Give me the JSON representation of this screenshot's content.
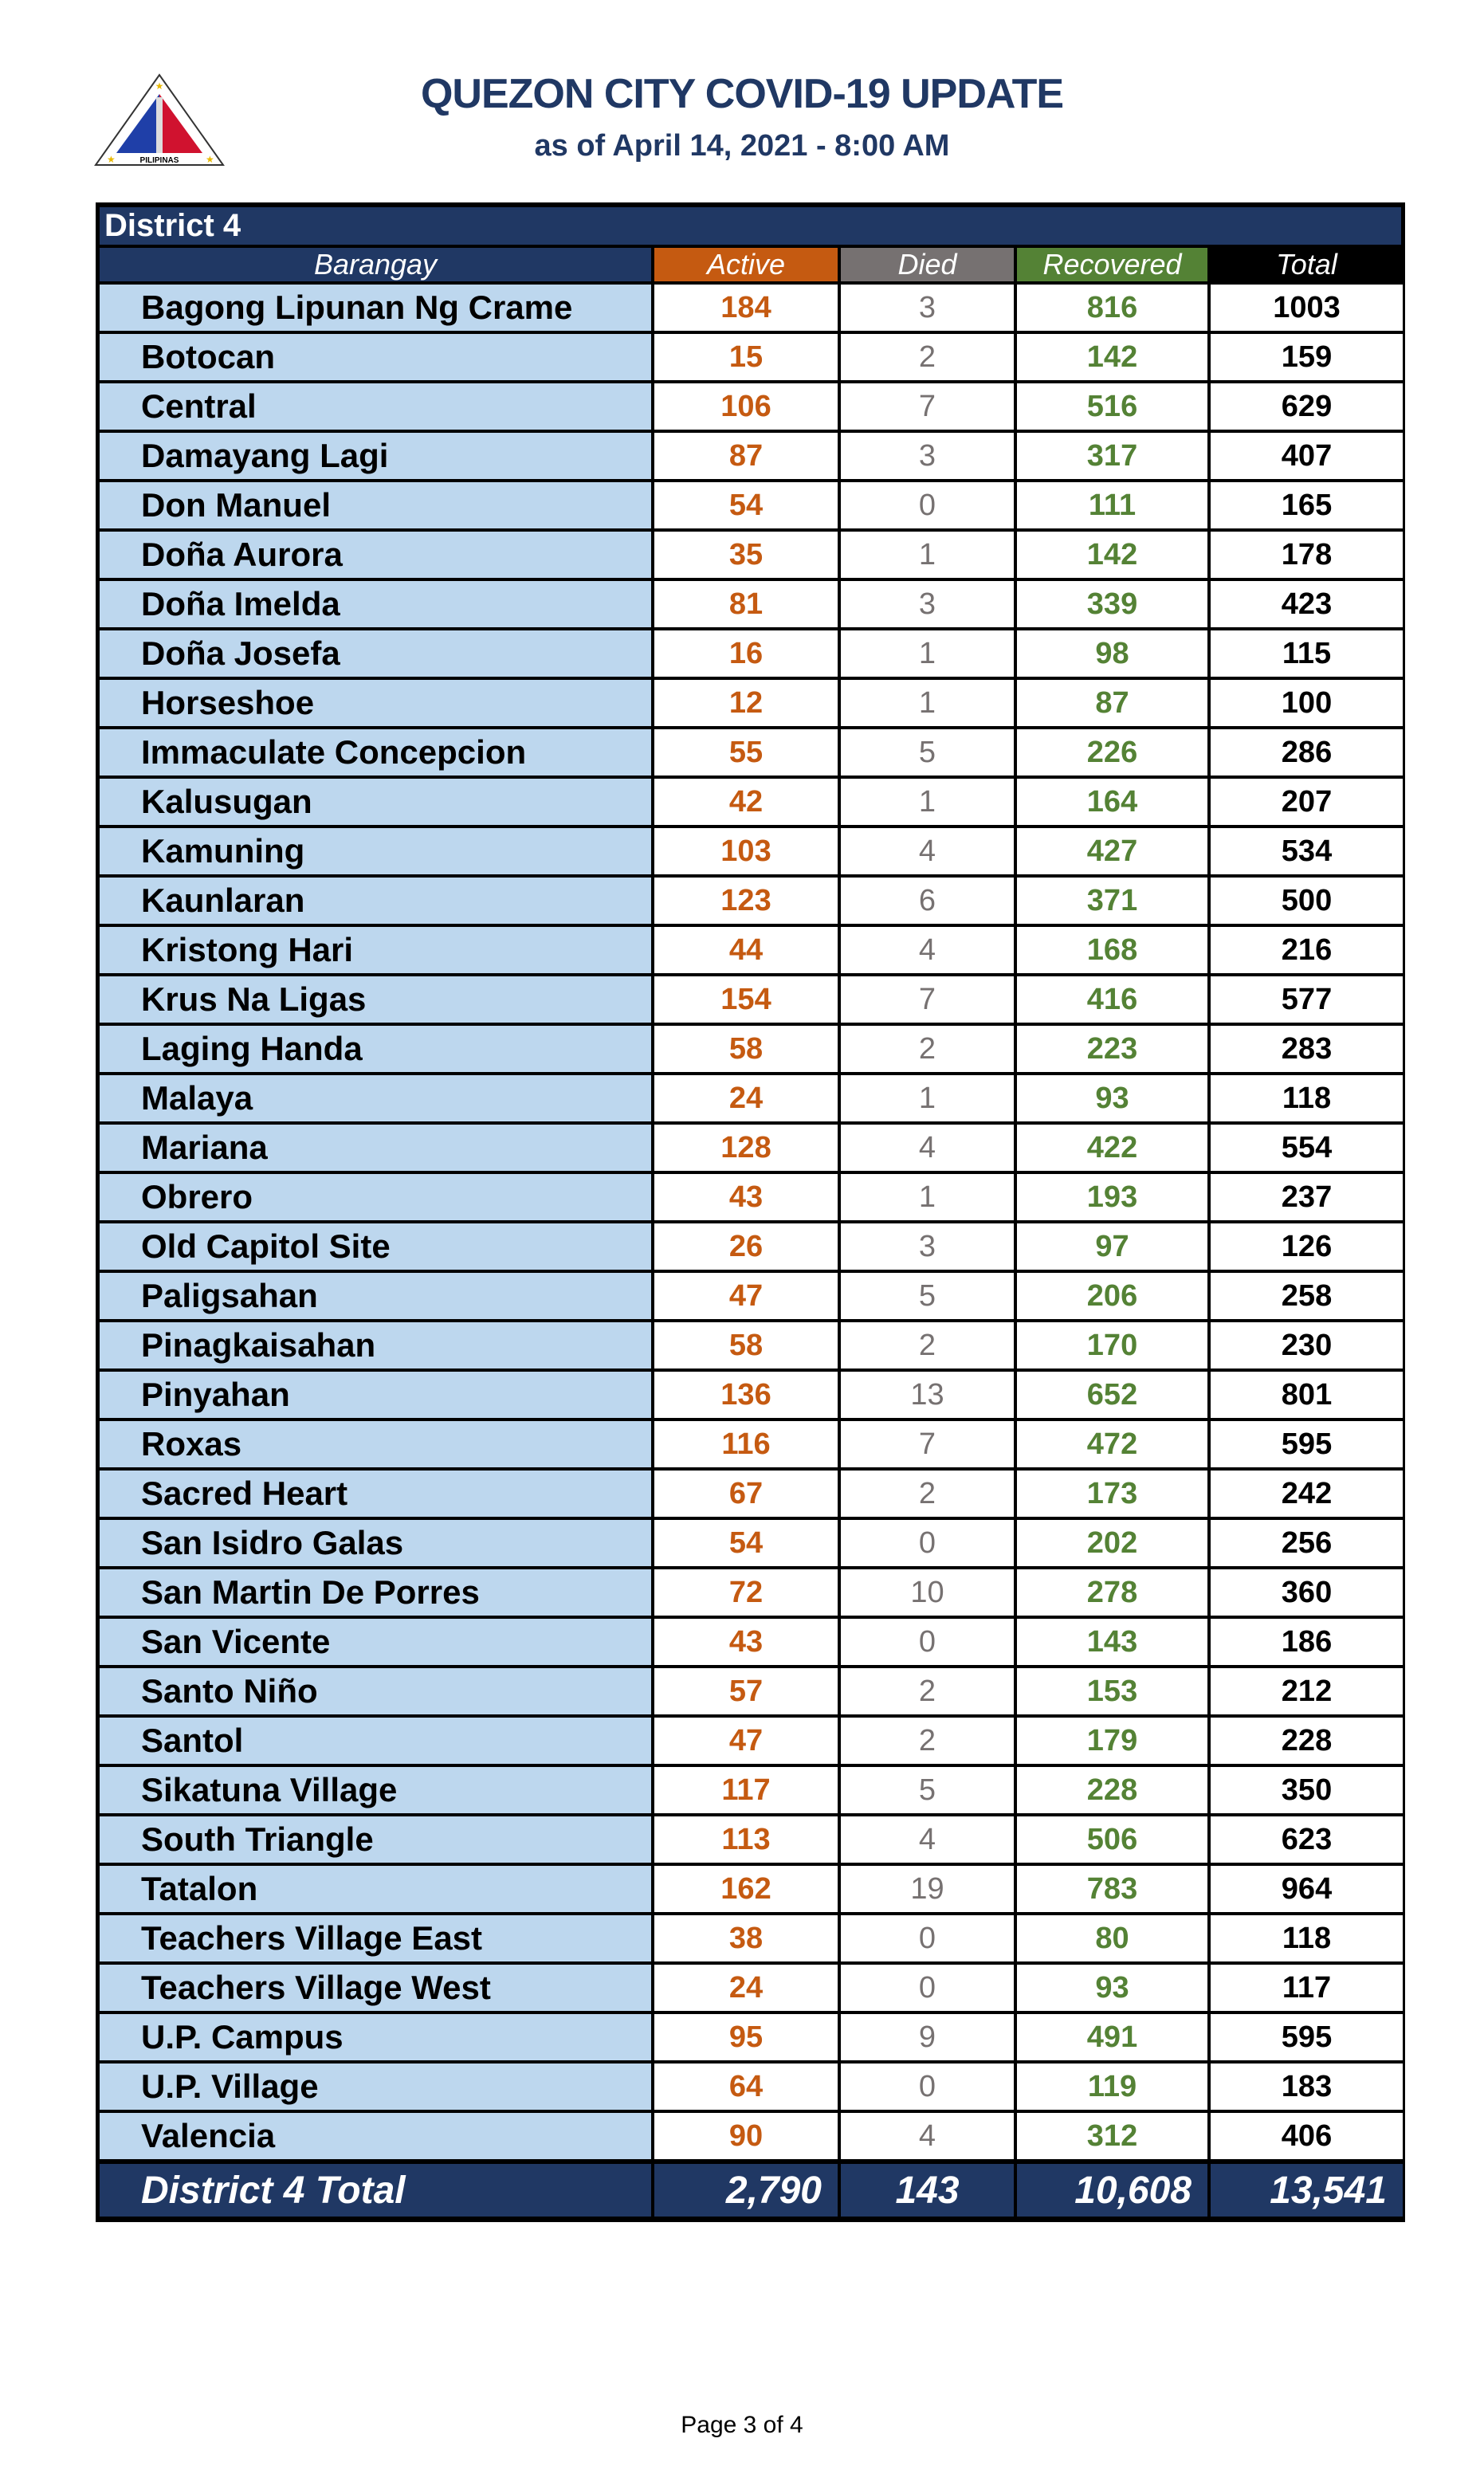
{
  "header": {
    "title": "QUEZON CITY COVID-19 UPDATE",
    "subtitle": "as of April 14, 2021 - 8:00 AM",
    "logo_text": "LUNGSOD QUEZON PILIPINAS"
  },
  "table": {
    "district": "District 4",
    "columns": [
      "Barangay",
      "Active",
      "Died",
      "Recovered",
      "Total"
    ],
    "rows": [
      [
        "Bagong Lipunan Ng Crame",
        "184",
        "3",
        "816",
        "1003"
      ],
      [
        "Botocan",
        "15",
        "2",
        "142",
        "159"
      ],
      [
        "Central",
        "106",
        "7",
        "516",
        "629"
      ],
      [
        "Damayang Lagi",
        "87",
        "3",
        "317",
        "407"
      ],
      [
        "Don Manuel",
        "54",
        "0",
        "111",
        "165"
      ],
      [
        "Doña Aurora",
        "35",
        "1",
        "142",
        "178"
      ],
      [
        "Doña Imelda",
        "81",
        "3",
        "339",
        "423"
      ],
      [
        "Doña Josefa",
        "16",
        "1",
        "98",
        "115"
      ],
      [
        "Horseshoe",
        "12",
        "1",
        "87",
        "100"
      ],
      [
        "Immaculate Concepcion",
        "55",
        "5",
        "226",
        "286"
      ],
      [
        "Kalusugan",
        "42",
        "1",
        "164",
        "207"
      ],
      [
        "Kamuning",
        "103",
        "4",
        "427",
        "534"
      ],
      [
        "Kaunlaran",
        "123",
        "6",
        "371",
        "500"
      ],
      [
        "Kristong Hari",
        "44",
        "4",
        "168",
        "216"
      ],
      [
        "Krus Na Ligas",
        "154",
        "7",
        "416",
        "577"
      ],
      [
        "Laging Handa",
        "58",
        "2",
        "223",
        "283"
      ],
      [
        "Malaya",
        "24",
        "1",
        "93",
        "118"
      ],
      [
        "Mariana",
        "128",
        "4",
        "422",
        "554"
      ],
      [
        "Obrero",
        "43",
        "1",
        "193",
        "237"
      ],
      [
        "Old Capitol Site",
        "26",
        "3",
        "97",
        "126"
      ],
      [
        "Paligsahan",
        "47",
        "5",
        "206",
        "258"
      ],
      [
        "Pinagkaisahan",
        "58",
        "2",
        "170",
        "230"
      ],
      [
        "Pinyahan",
        "136",
        "13",
        "652",
        "801"
      ],
      [
        "Roxas",
        "116",
        "7",
        "472",
        "595"
      ],
      [
        "Sacred Heart",
        "67",
        "2",
        "173",
        "242"
      ],
      [
        "San Isidro Galas",
        "54",
        "0",
        "202",
        "256"
      ],
      [
        "San Martin De Porres",
        "72",
        "10",
        "278",
        "360"
      ],
      [
        "San Vicente",
        "43",
        "0",
        "143",
        "186"
      ],
      [
        "Santo Niño",
        "57",
        "2",
        "153",
        "212"
      ],
      [
        "Santol",
        "47",
        "2",
        "179",
        "228"
      ],
      [
        "Sikatuna Village",
        "117",
        "5",
        "228",
        "350"
      ],
      [
        "South Triangle",
        "113",
        "4",
        "506",
        "623"
      ],
      [
        "Tatalon",
        "162",
        "19",
        "783",
        "964"
      ],
      [
        "Teachers Village East",
        "38",
        "0",
        "80",
        "118"
      ],
      [
        "Teachers Village West",
        "24",
        "0",
        "93",
        "117"
      ],
      [
        "U.P. Campus",
        "95",
        "9",
        "491",
        "595"
      ],
      [
        "U.P. Village",
        "64",
        "0",
        "119",
        "183"
      ],
      [
        "Valencia",
        "90",
        "4",
        "312",
        "406"
      ]
    ],
    "total": [
      "District 4 Total",
      "2,790",
      "143",
      "10,608",
      "13,541"
    ]
  },
  "colors": {
    "navy": "#203864",
    "active": "#C55A11",
    "died": "#767171",
    "recovered": "#548235",
    "barangay_bg": "#BDD7EE"
  },
  "footer": {
    "page": "Page 3 of 4"
  }
}
